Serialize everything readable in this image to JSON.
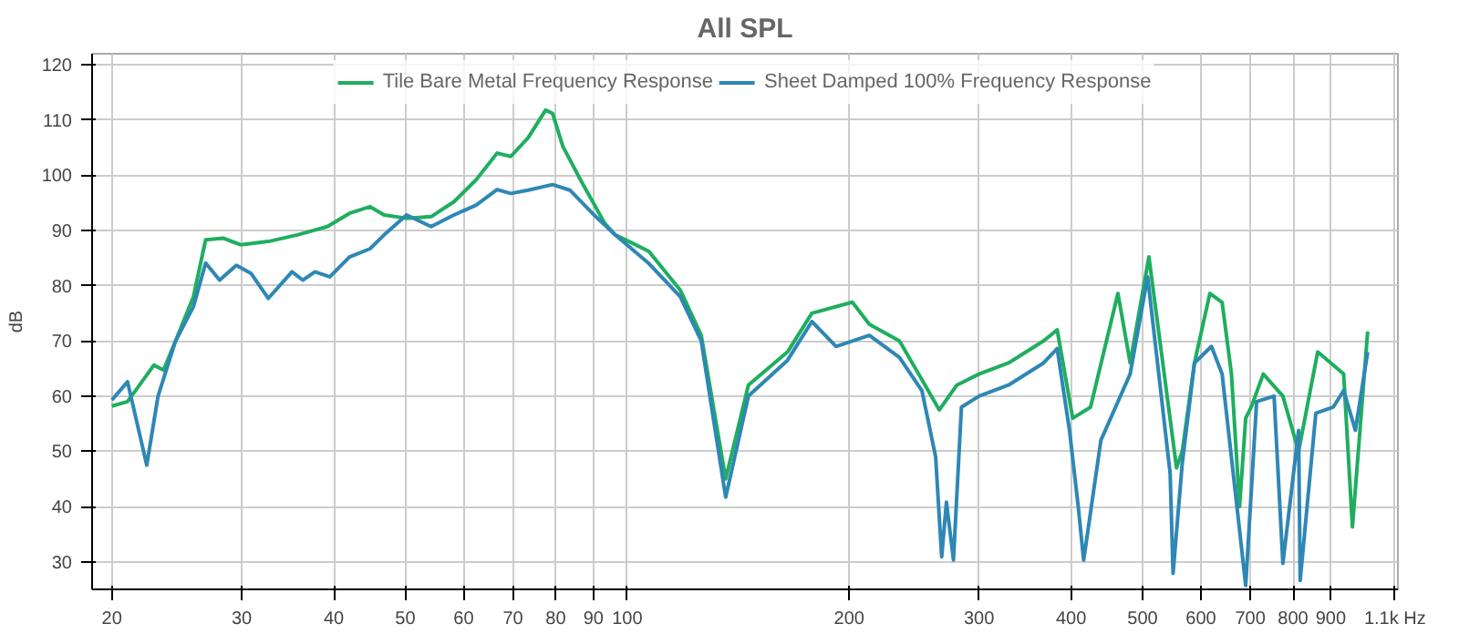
{
  "chart_data": {
    "type": "line",
    "title": "All SPL",
    "ylabel": "dB",
    "log": "x",
    "grid": true,
    "legend": "top",
    "line_style": "solid",
    "xlim": [
      18.8,
      1110
    ],
    "ylim": [
      25,
      122
    ],
    "xticks": [
      20,
      30,
      40,
      50,
      60,
      70,
      80,
      90,
      100,
      200,
      300,
      400,
      500,
      600,
      700,
      800,
      900,
      {
        "value": 1100,
        "label": "1.1k Hz"
      }
    ],
    "yticks": [
      30,
      40,
      50,
      60,
      70,
      80,
      90,
      100,
      110,
      120
    ],
    "series": [
      {
        "name": "Tile Bare Metal Frequency Response",
        "color": "#1fae5f",
        "x": [
          20,
          21,
          22.8,
          23.5,
          24.4,
          25.8,
          26.8,
          28.3,
          29.9,
          32.6,
          35.7,
          39.2,
          42,
          44.8,
          46.8,
          50.2,
          54.2,
          58.2,
          62.4,
          66.6,
          69.5,
          73.4,
          77.5,
          79.2,
          81.8,
          86.4,
          93.2,
          96.3,
          101.6,
          107,
          118,
          126,
          136,
          146,
          165,
          178,
          202,
          213,
          234,
          251,
          265,
          280,
          300,
          329,
          367,
          383,
          402,
          425,
          463,
          481,
          510,
          556,
          566,
          588,
          617,
          641,
          660,
          677,
          690,
          702,
          729,
          775,
          814,
          864,
          937,
          963,
          1010
        ],
        "values": [
          58.2,
          59,
          65.6,
          64.7,
          70,
          78,
          88.3,
          88.6,
          87.4,
          88,
          89.2,
          90.7,
          93.1,
          94.3,
          92.8,
          92.2,
          92.5,
          95.2,
          99.2,
          104,
          103.4,
          106.8,
          111.8,
          111.2,
          105.2,
          99.2,
          91.3,
          89.2,
          87.7,
          86.2,
          79.2,
          71,
          45,
          62,
          68,
          75,
          77,
          73,
          70,
          63,
          57.5,
          62,
          64,
          66,
          70,
          72,
          56,
          58,
          78.6,
          66,
          85.2,
          47,
          50,
          66,
          78.6,
          77,
          64,
          40,
          56,
          58,
          64,
          60,
          50,
          68,
          64,
          36.3,
          71.7
        ]
      },
      {
        "name": "Sheet Damped 100% Frequency Response",
        "color": "#2e87b5",
        "x": [
          20,
          21,
          22.3,
          23.1,
          24.4,
          25.8,
          26.8,
          28,
          29.5,
          30.9,
          32.6,
          35.1,
          36.3,
          37.7,
          39.5,
          42,
          44.8,
          46.8,
          50.2,
          54.2,
          58.2,
          62.4,
          66.6,
          69.5,
          73.4,
          79.2,
          83.6,
          89.7,
          96.3,
          107,
          118,
          126,
          136,
          146,
          165,
          178,
          192,
          213,
          234,
          251,
          262,
          267,
          271,
          277,
          284,
          300,
          329,
          367,
          383,
          398,
          409,
          416,
          439,
          481,
          508,
          545,
          550,
          566,
          588,
          620,
          641,
          677,
          690,
          714,
          754,
          775,
          814,
          818,
          859,
          907,
          937,
          972,
          1010
        ],
        "values": [
          59.3,
          62.6,
          47.5,
          60,
          70,
          76.2,
          84.1,
          81,
          83.7,
          82.2,
          77.7,
          82.5,
          81,
          82.5,
          81.6,
          85.2,
          86.7,
          89.2,
          92.8,
          90.7,
          92.8,
          94.6,
          97.4,
          96.7,
          97.3,
          98.3,
          97.3,
          93.1,
          89.2,
          84,
          78,
          70,
          41.7,
          60,
          66.5,
          73.5,
          69,
          71,
          67,
          61,
          49,
          30.9,
          40.8,
          30.3,
          58,
          60,
          62,
          66,
          68.6,
          53.8,
          40,
          30.3,
          52,
          64,
          81.6,
          46,
          27.9,
          47.8,
          66,
          69,
          64,
          35.7,
          25.7,
          59,
          60,
          29.7,
          53.8,
          26.6,
          56.9,
          58,
          61,
          53.8,
          68
        ]
      }
    ]
  }
}
